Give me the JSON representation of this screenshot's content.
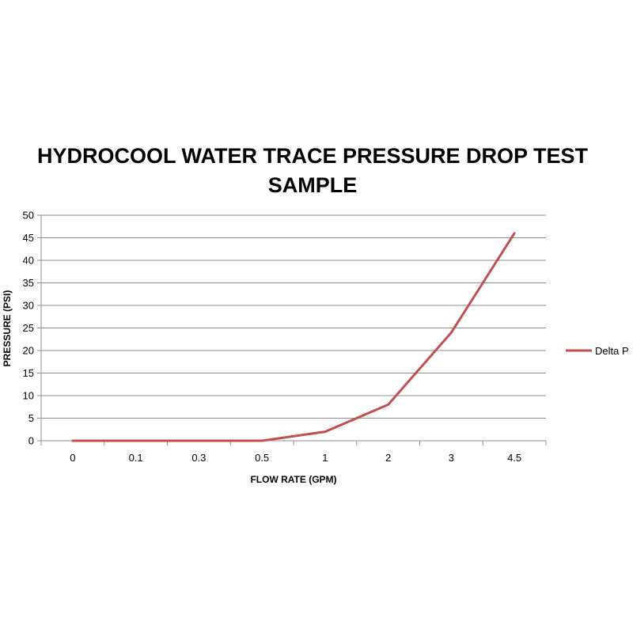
{
  "chart_data": {
    "type": "line",
    "title_lines": [
      "HYDROCOOL WATER TRACE PRESSURE DROP TEST",
      "SAMPLE"
    ],
    "xlabel": "FLOW RATE (GPM)",
    "ylabel": "PRESSURE  (PSI)",
    "categories": [
      "0",
      "0.1",
      "0.3",
      "0.5",
      "1",
      "2",
      "3",
      "4.5"
    ],
    "ylim": [
      0,
      50
    ],
    "y_ticks": [
      0,
      5,
      10,
      15,
      20,
      25,
      30,
      35,
      40,
      45,
      50
    ],
    "grid": true,
    "legend_position": "right",
    "series": [
      {
        "name": "Delta P",
        "color": "#c0504d",
        "values": [
          0,
          0,
          0,
          0,
          2,
          8,
          24,
          46
        ]
      }
    ]
  }
}
